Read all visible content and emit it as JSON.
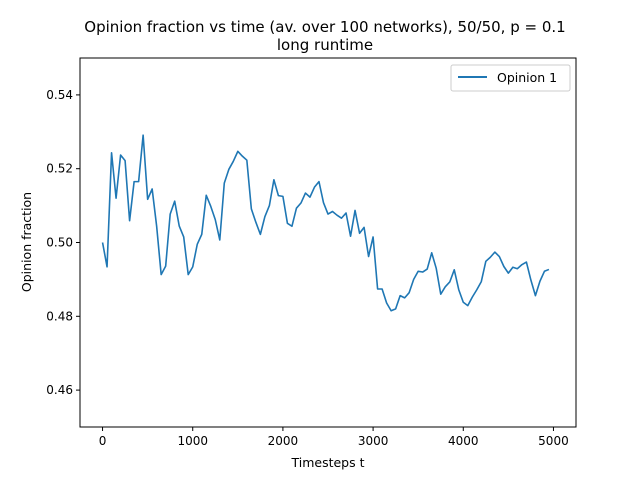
{
  "chart_data": {
    "type": "line",
    "title_line1": "Opinion fraction vs time (av. over 100 networks), 50/50, p = 0.1",
    "title_line2": "long runtime",
    "xlabel": "Timesteps t",
    "ylabel": "Opinion fraction",
    "xlim": [
      -250,
      5250
    ],
    "ylim": [
      0.45,
      0.55
    ],
    "xticks": [
      0,
      1000,
      2000,
      3000,
      4000,
      5000
    ],
    "xtick_labels": [
      "0",
      "1000",
      "2000",
      "3000",
      "4000",
      "5000"
    ],
    "yticks": [
      0.46,
      0.48,
      0.5,
      0.52,
      0.54
    ],
    "ytick_labels": [
      "0.46",
      "0.48",
      "0.50",
      "0.52",
      "0.54"
    ],
    "grid": false,
    "legend_position": "top-right",
    "colors": {
      "series": "#1f77b4",
      "axes": "#000000",
      "background": "#ffffff"
    },
    "series": [
      {
        "name": "Opinion 1",
        "x": [
          0,
          50,
          100,
          150,
          200,
          250,
          300,
          350,
          400,
          450,
          500,
          550,
          600,
          650,
          700,
          750,
          800,
          850,
          900,
          950,
          1000,
          1050,
          1100,
          1150,
          1200,
          1250,
          1300,
          1350,
          1400,
          1450,
          1500,
          1550,
          1600,
          1650,
          1700,
          1750,
          1800,
          1850,
          1900,
          1950,
          2000,
          2050,
          2100,
          2150,
          2200,
          2250,
          2300,
          2350,
          2400,
          2450,
          2500,
          2550,
          2600,
          2650,
          2700,
          2750,
          2800,
          2850,
          2900,
          2950,
          3000,
          3050,
          3100,
          3150,
          3200,
          3250,
          3300,
          3350,
          3400,
          3450,
          3500,
          3550,
          3600,
          3650,
          3700,
          3750,
          3800,
          3850,
          3900,
          3950,
          4000,
          4050,
          4100,
          4150,
          4200,
          4250,
          4300,
          4350,
          4400,
          4450,
          4500,
          4550,
          4600,
          4650,
          4700,
          4750,
          4800,
          4850,
          4900,
          4950
        ],
        "y": [
          0.5,
          0.4934,
          0.5243,
          0.512,
          0.5237,
          0.5222,
          0.5059,
          0.5165,
          0.5165,
          0.5291,
          0.5117,
          0.5145,
          0.5044,
          0.4913,
          0.4936,
          0.5077,
          0.5112,
          0.5045,
          0.5015,
          0.4913,
          0.4934,
          0.4995,
          0.5022,
          0.5128,
          0.5098,
          0.5062,
          0.5007,
          0.5161,
          0.5198,
          0.522,
          0.5247,
          0.5234,
          0.5223,
          0.5091,
          0.5055,
          0.5022,
          0.507,
          0.51,
          0.517,
          0.5127,
          0.5125,
          0.5052,
          0.5044,
          0.5093,
          0.5107,
          0.5134,
          0.5123,
          0.515,
          0.5165,
          0.5108,
          0.5077,
          0.5084,
          0.5074,
          0.5066,
          0.508,
          0.5017,
          0.5087,
          0.5025,
          0.5041,
          0.4962,
          0.5015,
          0.4874,
          0.4874,
          0.4836,
          0.4815,
          0.482,
          0.4856,
          0.485,
          0.4864,
          0.49,
          0.4922,
          0.492,
          0.4928,
          0.4972,
          0.493,
          0.486,
          0.488,
          0.4893,
          0.4926,
          0.4872,
          0.4838,
          0.4829,
          0.4852,
          0.4872,
          0.4894,
          0.4949,
          0.496,
          0.4974,
          0.4962,
          0.4935,
          0.4917,
          0.4933,
          0.4929,
          0.494,
          0.4947,
          0.4898,
          0.4856,
          0.4895,
          0.4922,
          0.4927
        ]
      }
    ]
  }
}
